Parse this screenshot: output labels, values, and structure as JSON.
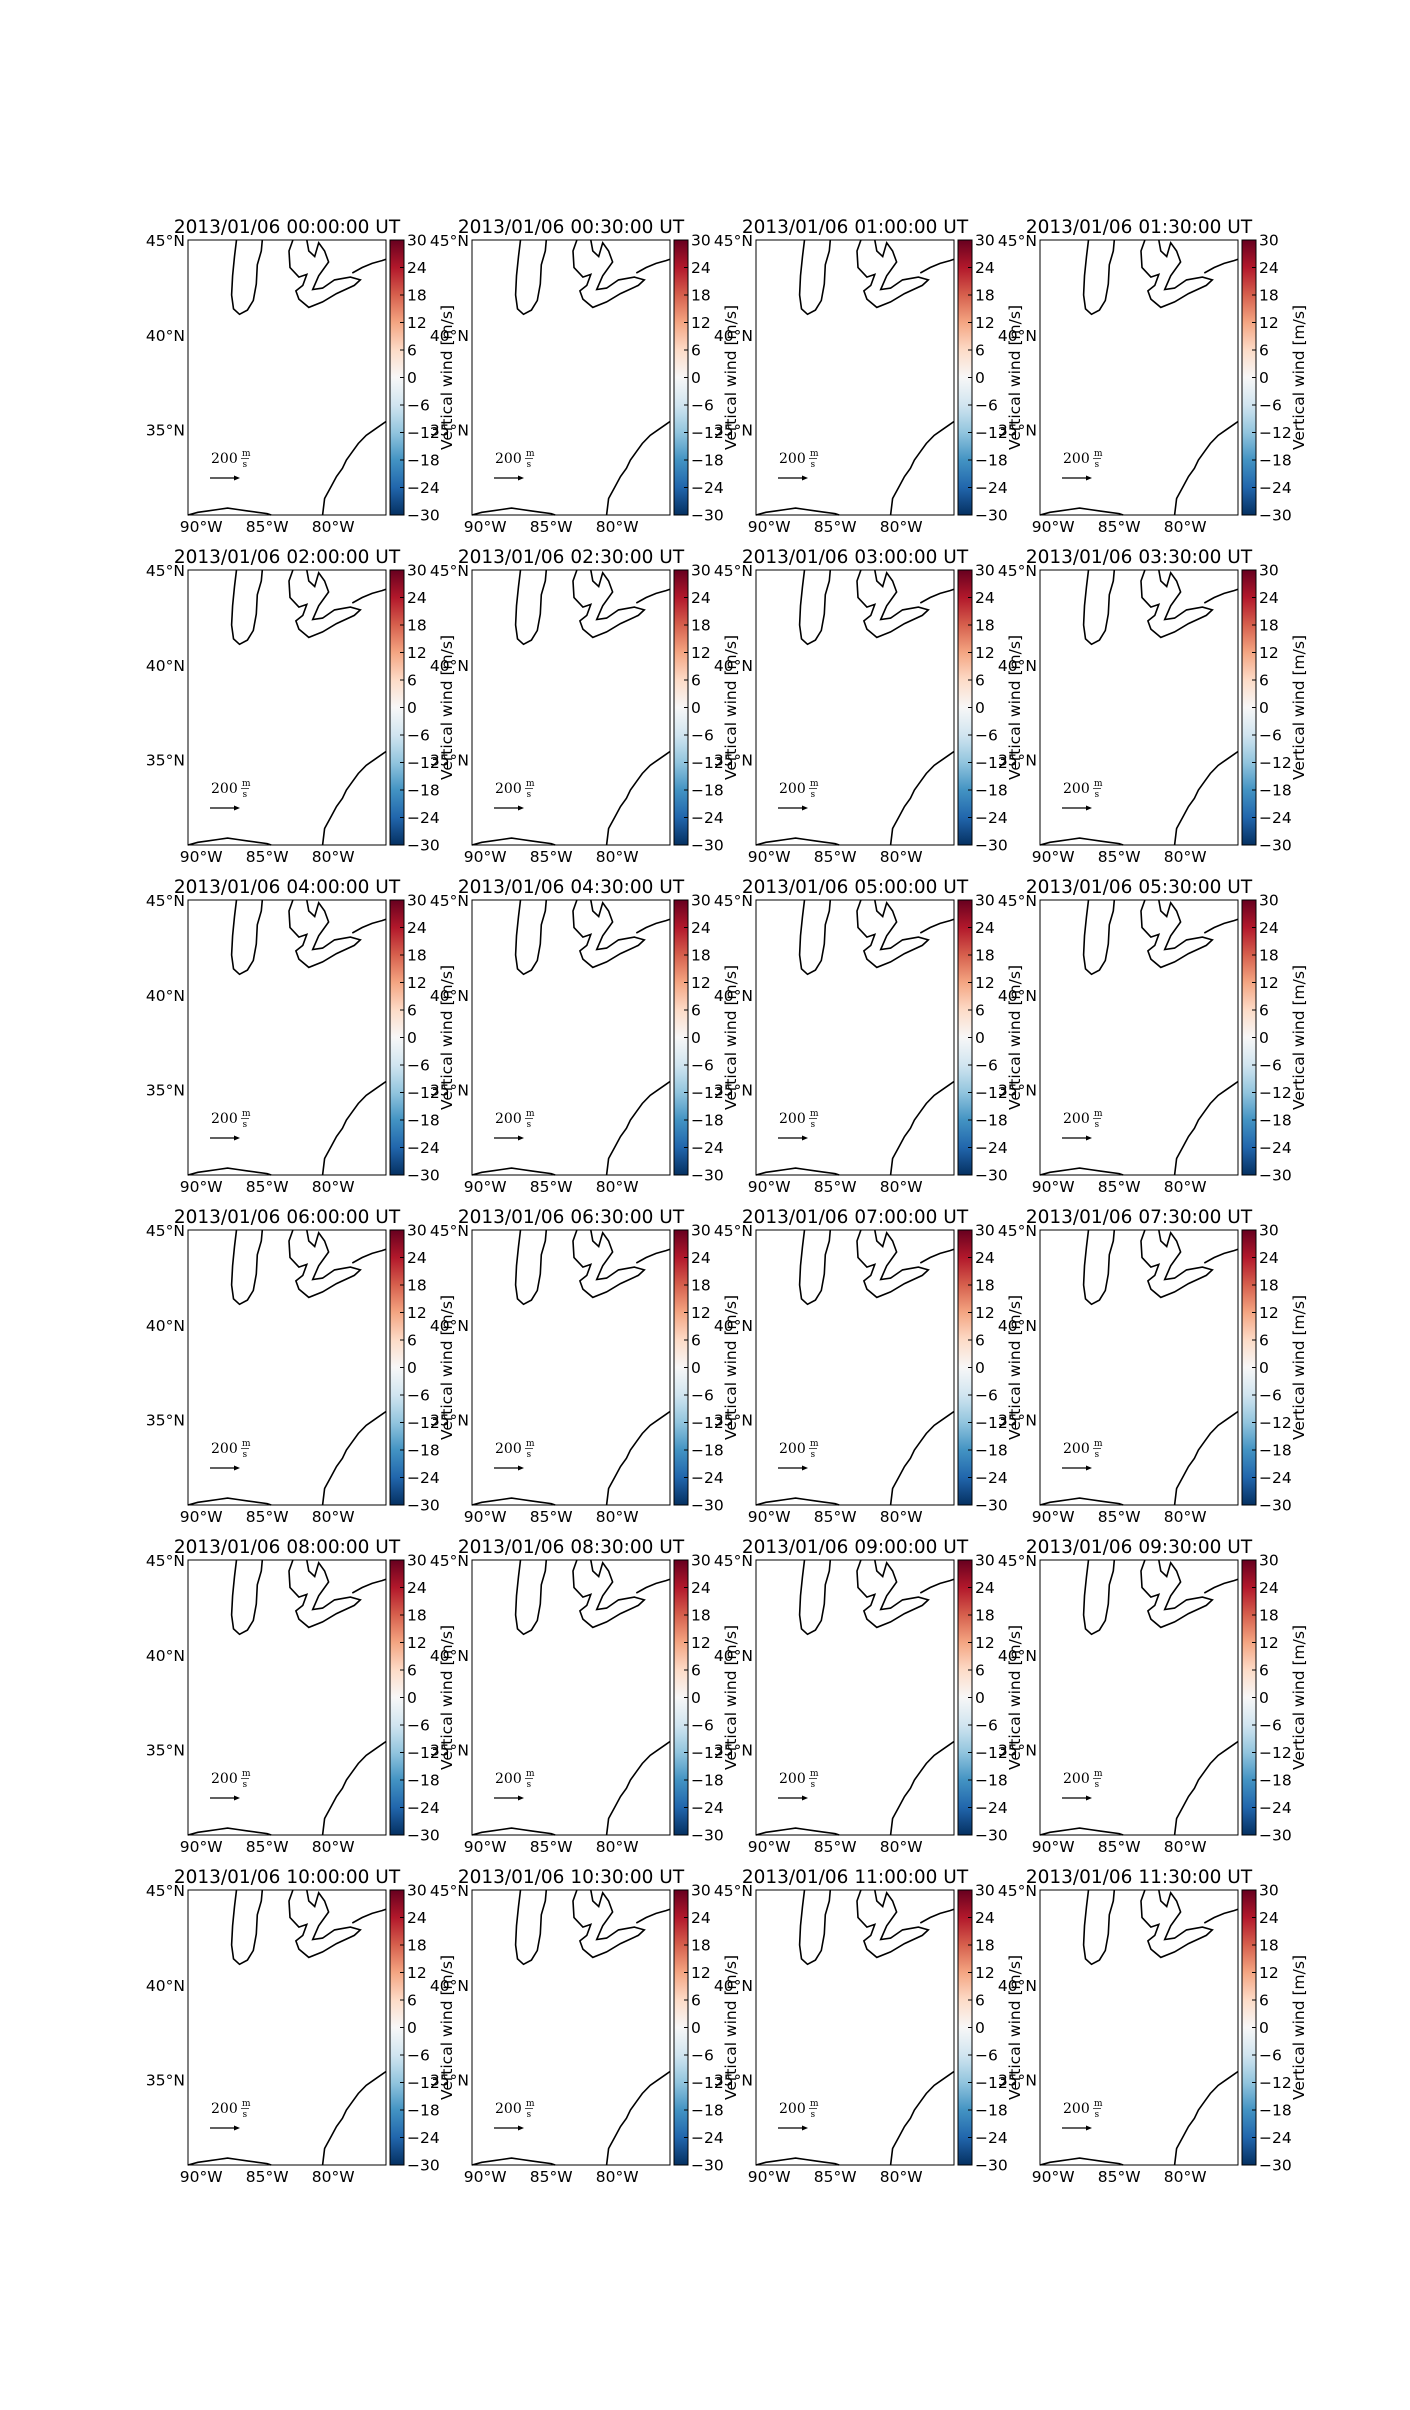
{
  "figure": {
    "titles": [
      "2013/01/06 00:00:00 UT",
      "2013/01/06 00:30:00 UT",
      "2013/01/06 01:00:00 UT",
      "2013/01/06 01:30:00 UT",
      "2013/01/06 02:00:00 UT",
      "2013/01/06 02:30:00 UT",
      "2013/01/06 03:00:00 UT",
      "2013/01/06 03:30:00 UT",
      "2013/01/06 04:00:00 UT",
      "2013/01/06 04:30:00 UT",
      "2013/01/06 05:00:00 UT",
      "2013/01/06 05:30:00 UT",
      "2013/01/06 06:00:00 UT",
      "2013/01/06 06:30:00 UT",
      "2013/01/06 07:00:00 UT",
      "2013/01/06 07:30:00 UT",
      "2013/01/06 08:00:00 UT",
      "2013/01/06 08:30:00 UT",
      "2013/01/06 09:00:00 UT",
      "2013/01/06 09:30:00 UT",
      "2013/01/06 10:00:00 UT",
      "2013/01/06 10:30:00 UT",
      "2013/01/06 11:00:00 UT",
      "2013/01/06 11:30:00 UT"
    ],
    "rows": 6,
    "cols": 4,
    "lat_ticks": [
      "45°N",
      "40°N",
      "35°N"
    ],
    "lat_values": [
      45,
      40,
      35
    ],
    "lon_ticks": [
      "90°W",
      "85°W",
      "80°W"
    ],
    "lon_values": [
      -90,
      -85,
      -80
    ],
    "lon_range": [
      -91,
      -76
    ],
    "lat_range": [
      30.5,
      45
    ],
    "colorbar": {
      "label": "Vertical wind [m/s]",
      "ticks": [
        "30",
        "24",
        "18",
        "12",
        "6",
        "0",
        "−6",
        "−12",
        "−18",
        "−24",
        "−30"
      ],
      "tick_values": [
        30,
        24,
        18,
        12,
        6,
        0,
        -6,
        -12,
        -18,
        -24,
        -30
      ],
      "range": [
        -30,
        30
      ],
      "colormap": "RdBu_r",
      "colors": [
        "#053061",
        "#2166ac",
        "#4393c3",
        "#92c5de",
        "#d1e5f0",
        "#f7f7f7",
        "#fddbc7",
        "#f4a582",
        "#d6604d",
        "#b2182b",
        "#67001f"
      ]
    },
    "quiver_key": {
      "value": "200",
      "unit_numerator": "m",
      "unit_denominator": "s"
    }
  }
}
